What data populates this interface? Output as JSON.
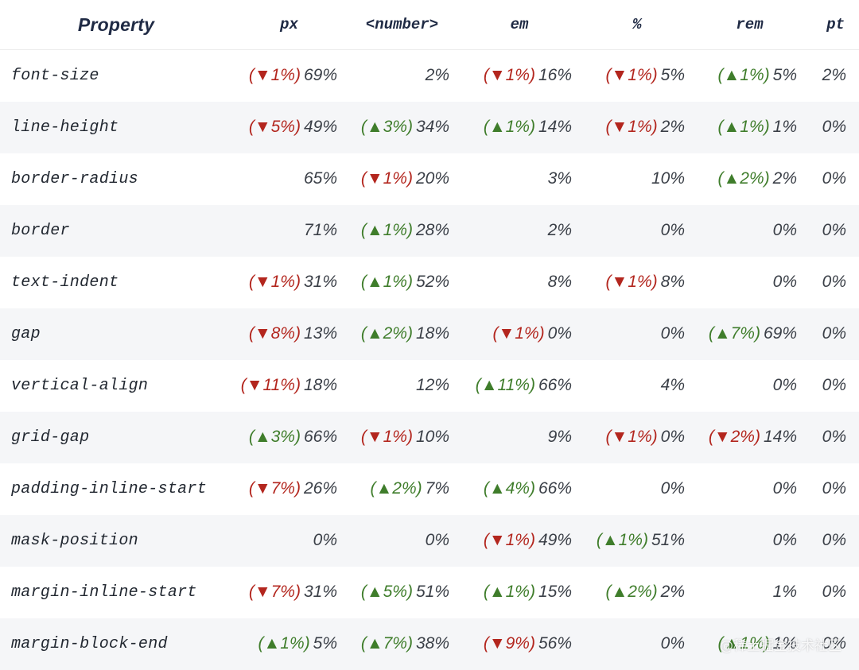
{
  "table": {
    "columns": [
      "Property",
      "px",
      "<number>",
      "em",
      "%",
      "rem",
      "pt"
    ],
    "rows": [
      {
        "property": "font-size",
        "cells": [
          {
            "change": "▼1%",
            "dir": "down",
            "value": "69%"
          },
          {
            "value": "2%"
          },
          {
            "change": "▼1%",
            "dir": "down",
            "value": "16%"
          },
          {
            "change": "▼1%",
            "dir": "down",
            "value": "5%"
          },
          {
            "change": "▲1%",
            "dir": "up",
            "value": "5%"
          },
          {
            "value": "2%"
          }
        ]
      },
      {
        "property": "line-height",
        "cells": [
          {
            "change": "▼5%",
            "dir": "down",
            "value": "49%"
          },
          {
            "change": "▲3%",
            "dir": "up",
            "value": "34%"
          },
          {
            "change": "▲1%",
            "dir": "up",
            "value": "14%"
          },
          {
            "change": "▼1%",
            "dir": "down",
            "value": "2%"
          },
          {
            "change": "▲1%",
            "dir": "up",
            "value": "1%"
          },
          {
            "value": "0%"
          }
        ]
      },
      {
        "property": "border-radius",
        "cells": [
          {
            "value": "65%"
          },
          {
            "change": "▼1%",
            "dir": "down",
            "value": "20%"
          },
          {
            "value": "3%"
          },
          {
            "value": "10%"
          },
          {
            "change": "▲2%",
            "dir": "up",
            "value": "2%"
          },
          {
            "value": "0%"
          }
        ]
      },
      {
        "property": "border",
        "cells": [
          {
            "value": "71%"
          },
          {
            "change": "▲1%",
            "dir": "up",
            "value": "28%"
          },
          {
            "value": "2%"
          },
          {
            "value": "0%"
          },
          {
            "value": "0%"
          },
          {
            "value": "0%"
          }
        ]
      },
      {
        "property": "text-indent",
        "cells": [
          {
            "change": "▼1%",
            "dir": "down",
            "value": "31%"
          },
          {
            "change": "▲1%",
            "dir": "up",
            "value": "52%"
          },
          {
            "value": "8%"
          },
          {
            "change": "▼1%",
            "dir": "down",
            "value": "8%"
          },
          {
            "value": "0%"
          },
          {
            "value": "0%"
          }
        ]
      },
      {
        "property": "gap",
        "cells": [
          {
            "change": "▼8%",
            "dir": "down",
            "value": "13%"
          },
          {
            "change": "▲2%",
            "dir": "up",
            "value": "18%"
          },
          {
            "change": "▼1%",
            "dir": "down",
            "value": "0%"
          },
          {
            "value": "0%"
          },
          {
            "change": "▲7%",
            "dir": "up",
            "value": "69%"
          },
          {
            "value": "0%"
          }
        ]
      },
      {
        "property": "vertical-align",
        "cells": [
          {
            "change": "▼11%",
            "dir": "down",
            "value": "18%"
          },
          {
            "value": "12%"
          },
          {
            "change": "▲11%",
            "dir": "up",
            "value": "66%"
          },
          {
            "value": "4%"
          },
          {
            "value": "0%"
          },
          {
            "value": "0%"
          }
        ]
      },
      {
        "property": "grid-gap",
        "cells": [
          {
            "change": "▲3%",
            "dir": "up",
            "value": "66%"
          },
          {
            "change": "▼1%",
            "dir": "down",
            "value": "10%"
          },
          {
            "value": "9%"
          },
          {
            "change": "▼1%",
            "dir": "down",
            "value": "0%"
          },
          {
            "change": "▼2%",
            "dir": "down",
            "value": "14%"
          },
          {
            "value": "0%"
          }
        ]
      },
      {
        "property": "padding-inline-start",
        "cells": [
          {
            "change": "▼7%",
            "dir": "down",
            "value": "26%"
          },
          {
            "change": "▲2%",
            "dir": "up",
            "value": "7%"
          },
          {
            "change": "▲4%",
            "dir": "up",
            "value": "66%"
          },
          {
            "value": "0%"
          },
          {
            "value": "0%"
          },
          {
            "value": "0%"
          }
        ]
      },
      {
        "property": "mask-position",
        "cells": [
          {
            "value": "0%"
          },
          {
            "value": "0%"
          },
          {
            "change": "▼1%",
            "dir": "down",
            "value": "49%"
          },
          {
            "change": "▲1%",
            "dir": "up",
            "value": "51%"
          },
          {
            "value": "0%"
          },
          {
            "value": "0%"
          }
        ]
      },
      {
        "property": "margin-inline-start",
        "cells": [
          {
            "change": "▼7%",
            "dir": "down",
            "value": "31%"
          },
          {
            "change": "▲5%",
            "dir": "up",
            "value": "51%"
          },
          {
            "change": "▲1%",
            "dir": "up",
            "value": "15%"
          },
          {
            "change": "▲2%",
            "dir": "up",
            "value": "2%"
          },
          {
            "value": "1%"
          },
          {
            "value": "0%"
          }
        ]
      },
      {
        "property": "margin-block-end",
        "cells": [
          {
            "change": "▲1%",
            "dir": "up",
            "value": "5%"
          },
          {
            "change": "▲7%",
            "dir": "up",
            "value": "38%"
          },
          {
            "change": "▼9%",
            "dir": "down",
            "value": "56%"
          },
          {
            "value": "0%"
          },
          {
            "change": "▲1%",
            "dir": "up",
            "value": "1%"
          },
          {
            "value": "0%"
          }
        ]
      }
    ]
  },
  "watermark": "@稀土掘金技术社区",
  "colors": {
    "decrease": "#b3261e",
    "increase": "#3f7d2b",
    "header_text": "#1f2a44"
  }
}
